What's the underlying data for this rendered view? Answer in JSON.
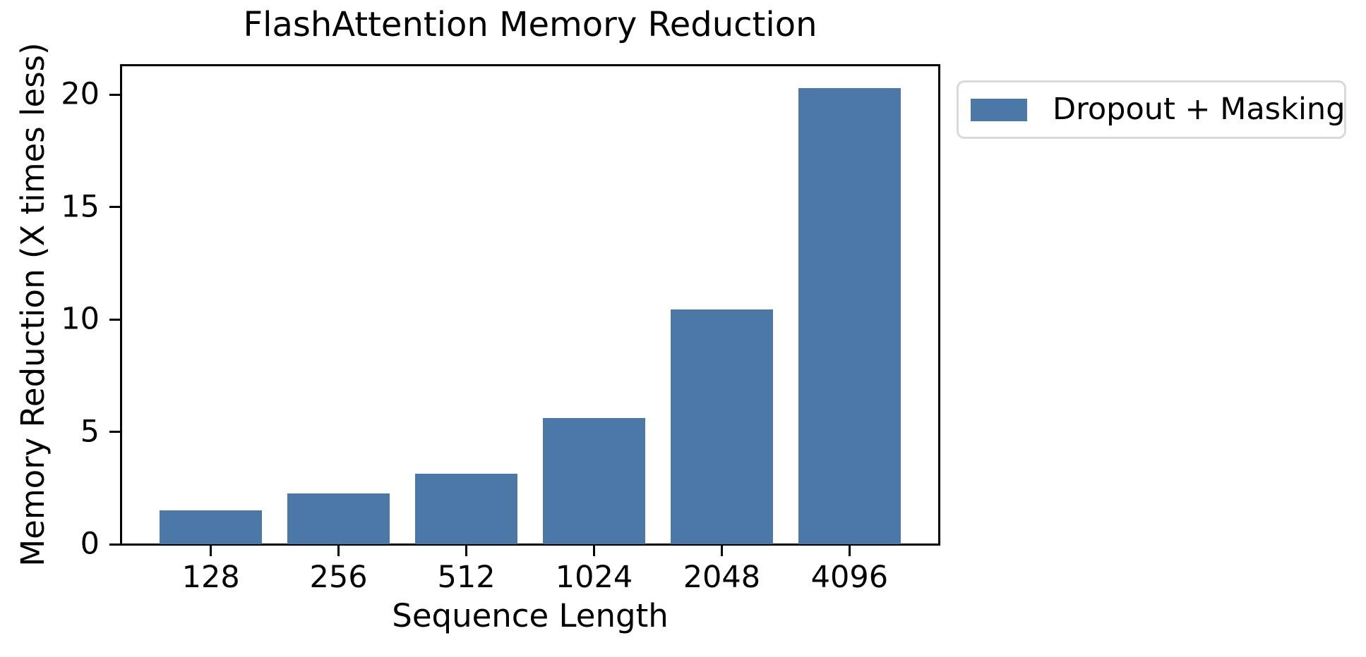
{
  "chart_data": {
    "type": "bar",
    "title": "FlashAttention Memory Reduction",
    "xlabel": "Sequence Length",
    "ylabel": "Memory Reduction (X times less)",
    "categories": [
      "128",
      "256",
      "512",
      "1024",
      "2048",
      "4096"
    ],
    "series": [
      {
        "name": "Dropout + Masking",
        "values": [
          1.5,
          2.25,
          3.15,
          5.6,
          10.45,
          20.3
        ]
      }
    ],
    "yticks": [
      0,
      5,
      10,
      15,
      20
    ],
    "ylim": [
      0,
      21.3
    ],
    "grid": false,
    "legend_position": "outside-upper-right",
    "colors": {
      "bar": "#4C78A8",
      "text": "#000000",
      "spine": "#000000",
      "legend_border": "#d9d9d9",
      "background": "#ffffff"
    }
  }
}
